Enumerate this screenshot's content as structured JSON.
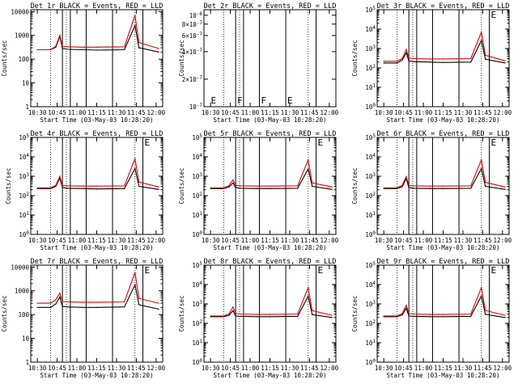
{
  "panels": [
    {
      "title": "Det 1r BLACK = Events, RED = LLD",
      "xlabel": "Start Time (03-May-03 10:28:20)",
      "ylabel": "Counts/sec",
      "ytick_style": "plain",
      "ymin": 1,
      "ymax": 12000,
      "events": [
        250,
        250,
        320,
        900,
        280,
        260,
        250,
        240,
        250,
        2600,
        300,
        200
      ],
      "lld": [
        250,
        250,
        350,
        1000,
        340,
        330,
        320,
        320,
        330,
        7000,
        500,
        280
      ],
      "has_data": true,
      "flags": []
    },
    {
      "title": "Det 2r BLACK = Events, RED = LLD",
      "xlabel": "Start Time (03-May-03 10:28:20)",
      "ylabel": "Counts/sec",
      "ytick_style": "neg",
      "ymin": 1e-07,
      "ymax": 1.15e-06,
      "events": [],
      "lld": [],
      "has_data": false,
      "flags": [
        "E",
        "F",
        "F",
        "E"
      ]
    },
    {
      "title": "Det 3r BLACK = Events, RED = LLD",
      "xlabel": "Start Time (03-May-03 10:28:20)",
      "ylabel": "Counts/sec",
      "ytick_style": "pow",
      "ymin": 1,
      "ymax": 100000,
      "events": [
        180,
        180,
        250,
        600,
        230,
        210,
        200,
        190,
        200,
        2600,
        280,
        180
      ],
      "lld": [
        220,
        220,
        300,
        900,
        320,
        300,
        290,
        290,
        300,
        7000,
        450,
        230
      ],
      "has_data": true,
      "flags": [
        "E"
      ]
    },
    {
      "title": "Det 4r BLACK = Events, RED = LLD",
      "xlabel": "Start Time (03-May-03 10:28:20)",
      "ylabel": "Counts/sec",
      "ytick_style": "pow",
      "ymin": 1,
      "ymax": 100000,
      "events": [
        230,
        230,
        300,
        800,
        260,
        240,
        230,
        220,
        230,
        2500,
        300,
        210
      ],
      "lld": [
        250,
        250,
        340,
        1000,
        330,
        320,
        310,
        310,
        320,
        8000,
        500,
        280
      ],
      "has_data": true,
      "flags": [
        "E"
      ]
    },
    {
      "title": "Det 5r BLACK = Events, RED = LLD",
      "xlabel": "Start Time (03-May-03 10:28:20)",
      "ylabel": "Counts/sec",
      "ytick_style": "pow",
      "ymin": 1,
      "ymax": 100000,
      "events": [
        230,
        230,
        280,
        450,
        260,
        240,
        230,
        230,
        240,
        2400,
        300,
        210
      ],
      "lld": [
        250,
        250,
        330,
        650,
        340,
        320,
        310,
        310,
        320,
        7000,
        450,
        280
      ],
      "has_data": true,
      "flags": [
        "E"
      ]
    },
    {
      "title": "Det 6r BLACK = Events, RED = LLD",
      "xlabel": "Start Time (03-May-03 10:28:20)",
      "ylabel": "Counts/sec",
      "ytick_style": "pow",
      "ymin": 1,
      "ymax": 100000,
      "events": [
        230,
        230,
        290,
        750,
        260,
        240,
        230,
        230,
        240,
        2500,
        300,
        210
      ],
      "lld": [
        250,
        250,
        340,
        950,
        330,
        320,
        310,
        310,
        320,
        7000,
        480,
        280
      ],
      "has_data": true,
      "flags": [
        "E"
      ]
    },
    {
      "title": "Det 7r BLACK = Events, RED = LLD",
      "xlabel": "Start Time (03-May-03 10:28:20)",
      "ylabel": "Counts/sec",
      "ytick_style": "plain",
      "ymin": 1,
      "ymax": 12000,
      "events": [
        200,
        200,
        280,
        550,
        220,
        210,
        200,
        200,
        210,
        1800,
        260,
        170
      ],
      "lld": [
        300,
        300,
        420,
        800,
        360,
        340,
        330,
        330,
        340,
        6000,
        480,
        300
      ],
      "has_data": true,
      "flags": [
        "E"
      ]
    },
    {
      "title": "Det 8r BLACK = Events, RED = LLD",
      "xlabel": "Start Time (03-May-03 10:28:20)",
      "ylabel": "Counts/sec",
      "ytick_style": "pow",
      "ymin": 1,
      "ymax": 100000,
      "events": [
        220,
        220,
        260,
        450,
        240,
        230,
        220,
        220,
        230,
        2500,
        280,
        200
      ],
      "lld": [
        240,
        240,
        310,
        700,
        320,
        300,
        290,
        290,
        300,
        7000,
        450,
        260
      ],
      "has_data": true,
      "flags": [
        "E"
      ]
    },
    {
      "title": "Det 9r BLACK = Events, RED = LLD",
      "xlabel": "Start Time (03-May-03 10:28:20)",
      "ylabel": "Counts/sec",
      "ytick_style": "pow",
      "ymin": 1,
      "ymax": 100000,
      "events": [
        220,
        220,
        270,
        600,
        240,
        230,
        220,
        220,
        230,
        2600,
        290,
        200
      ],
      "lld": [
        240,
        240,
        320,
        850,
        320,
        300,
        290,
        290,
        300,
        7000,
        460,
        260
      ],
      "has_data": true,
      "flags": [
        "E"
      ]
    }
  ],
  "chart_data": {
    "type": "line",
    "x_tick_labels": [
      "10:30",
      "10:45",
      "11:00",
      "11:15",
      "11:30",
      "11:45",
      "12:00"
    ],
    "x_minutes": [
      0,
      10,
      14,
      17,
      19,
      23,
      35,
      45,
      66,
      74,
      77,
      92
    ],
    "x_start": "10:28:20",
    "x_end": "12:05",
    "y_scale": "log",
    "series_names": [
      "BLACK = Events",
      "RED = LLD"
    ],
    "colors": {
      "events": "#000000",
      "lld": "#dd0000"
    }
  }
}
